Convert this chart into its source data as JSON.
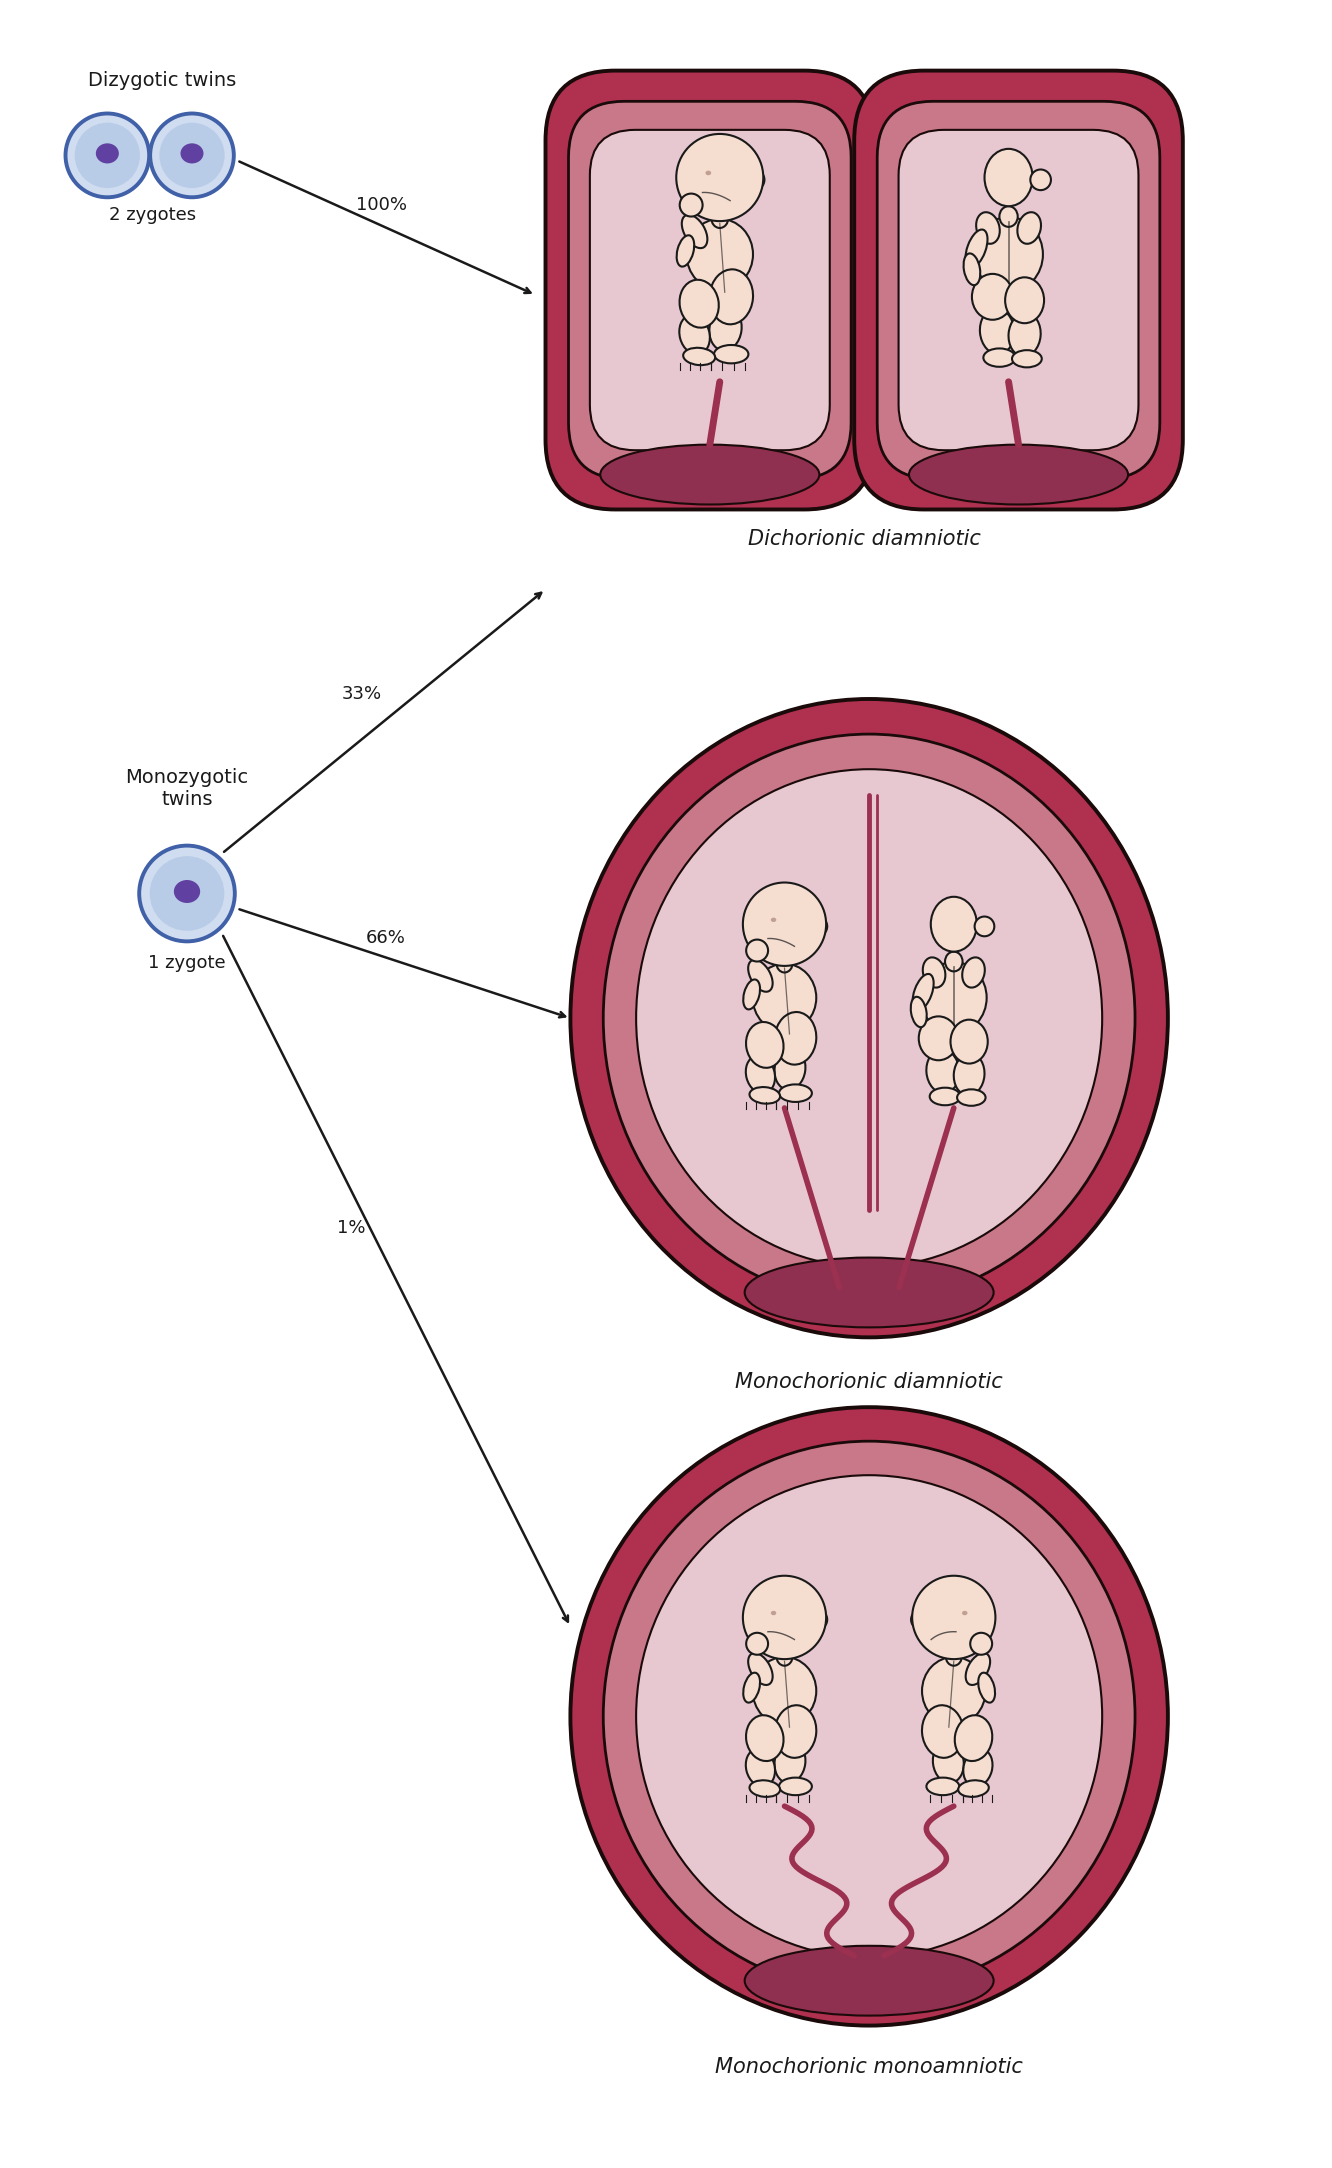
{
  "bg_color": "#ffffff",
  "dizygotic_label": "Dizygotic twins",
  "dizygotic_sub": "2 zygotes",
  "monozygotic_label": "Monozygotic\ntwins",
  "monozygotic_sub": "1 zygote",
  "pct_100": "100%",
  "pct_33": "33%",
  "pct_66": "66%",
  "pct_1": "1%",
  "label_top": "Dichorionic diamniotic",
  "label_mid": "Monochorionic diamniotic",
  "label_bot": "Monochorionic monoamniotic",
  "cell_outer_color": "#4060a8",
  "cell_inner_color": "#6040a0",
  "cell_fill_color": "#b8cce8",
  "cell_fill2": "#d0dcf0",
  "fetus_skin": "#f5ddd0",
  "fetus_line": "#1a1a1a",
  "cord_color": "#9b3050",
  "text_color": "#1a1a1a",
  "arrow_color": "#1a1a1a",
  "sac_deep_red": "#b03050",
  "sac_mid_pink": "#c87888",
  "sac_light_pink": "#dbaab5",
  "sac_lightest": "#e8c8d0",
  "sac_amnion": "#f0d8e0",
  "placenta_dark": "#903050",
  "membrane_color": "#9b3050"
}
